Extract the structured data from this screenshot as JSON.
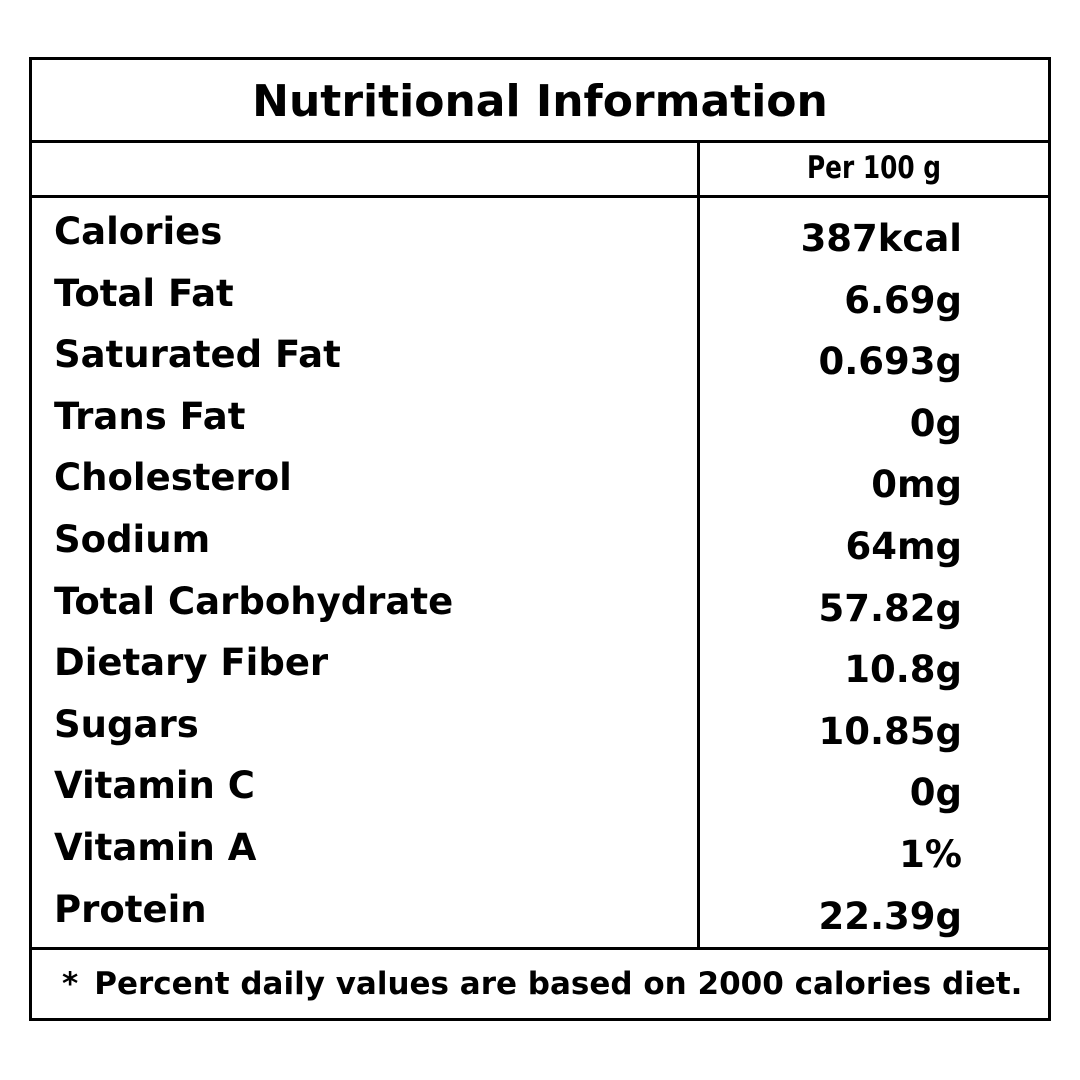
{
  "title": "Nutritional Information",
  "header": {
    "column": "Per 100 g"
  },
  "table": {
    "rows": [
      [
        "Calories",
        "387kcal"
      ],
      [
        "Total Fat",
        "6.69g"
      ],
      [
        "Saturated Fat",
        "0.693g"
      ],
      [
        "Trans Fat",
        "0g"
      ],
      [
        "Cholesterol",
        "0mg"
      ],
      [
        "Sodium",
        "64mg"
      ],
      [
        "Total Carbohydrate",
        "57.82g"
      ],
      [
        "Dietary Fiber",
        "10.8g"
      ],
      [
        "Sugars",
        "10.85g"
      ],
      [
        "Vitamin C",
        "0g"
      ],
      [
        "Vitamin A",
        "1%"
      ],
      [
        "Protein",
        "22.39g"
      ]
    ]
  },
  "footnote": {
    "marker": "*",
    "text": "Percent daily values are based on 2000 calories diet."
  }
}
